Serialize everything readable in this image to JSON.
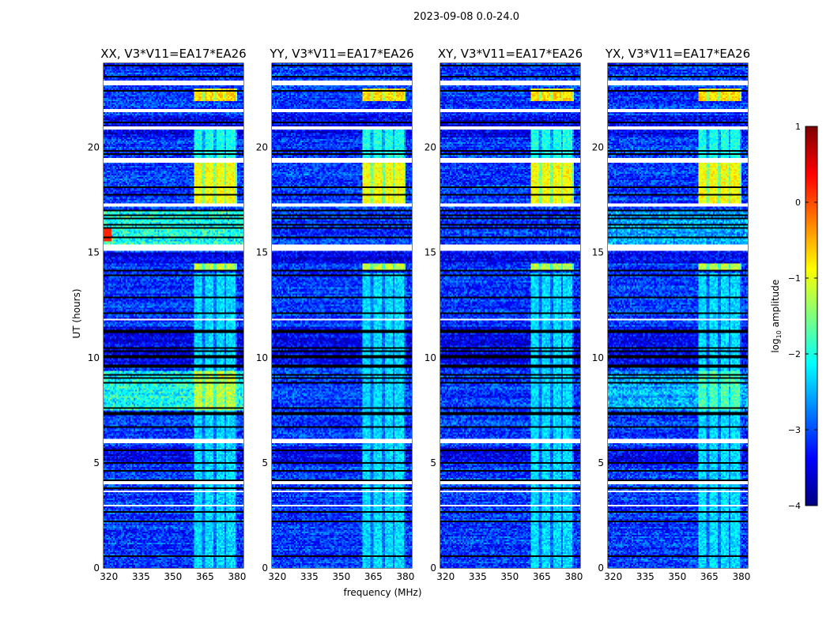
{
  "suptitle": "2023-09-08 0.0-24.0",
  "chart_data": {
    "type": "heatmap",
    "colormap": "jet",
    "xlabel": "frequency (MHz)",
    "ylabel": "UT (hours)",
    "xlim": [
      317.5,
      383
    ],
    "ylim": [
      0,
      24
    ],
    "xticks": [
      320,
      335,
      350,
      365,
      380
    ],
    "yticks": [
      0,
      5,
      10,
      15,
      20
    ],
    "panels": [
      {
        "title": "XX, V3*V11=EA17*EA26",
        "pol": "XX",
        "rfi_boost": 1
      },
      {
        "title": "YY, V3*V11=EA17*EA26",
        "pol": "YY",
        "rfi_boost": 0
      },
      {
        "title": "XY, V3*V11=EA17*EA26",
        "pol": "XY",
        "rfi_boost": 0
      },
      {
        "title": "YX, V3*V11=EA17*EA26",
        "pol": "YX",
        "rfi_boost": 0.5
      }
    ],
    "baseline_log_amplitude": -3.1,
    "bright_band_MHz": [
      360,
      380
    ],
    "bright_band_subchannels_MHz": [
      [
        360,
        364
      ],
      [
        365,
        369
      ],
      [
        370,
        374
      ],
      [
        375,
        379
      ]
    ],
    "bright_intervals_hours": [
      [
        22.2,
        22.8,
        -0.7
      ],
      [
        17.3,
        19.3,
        -0.9
      ],
      [
        14.2,
        14.5,
        -1.2
      ],
      [
        19.5,
        21.0,
        -2.0
      ],
      [
        0,
        14,
        -2.3
      ]
    ],
    "flagged_intervals_hours": [
      [
        22.95,
        23.2
      ],
      [
        21.65,
        21.85
      ],
      [
        20.85,
        21.0
      ],
      [
        19.25,
        19.5
      ],
      [
        17.2,
        17.35
      ],
      [
        15.1,
        15.35
      ],
      [
        5.95,
        6.15
      ],
      [
        3.95,
        4.1
      ],
      [
        3.6,
        3.65
      ],
      [
        2.95,
        3.0
      ],
      [
        8.6,
        8.65
      ],
      [
        11.8,
        11.85
      ],
      [
        12.2,
        12.25
      ]
    ],
    "colorbar": {
      "label": "log10 amplitude",
      "label_main": "log",
      "label_sub": "10",
      "label_rest": " amplitude",
      "ticks": [
        1,
        0,
        -1,
        -2,
        -3,
        -4
      ],
      "tick_labels": [
        "1",
        "0",
        "−1",
        "−2",
        "−3",
        "−4"
      ],
      "range": [
        -4,
        1
      ]
    }
  }
}
